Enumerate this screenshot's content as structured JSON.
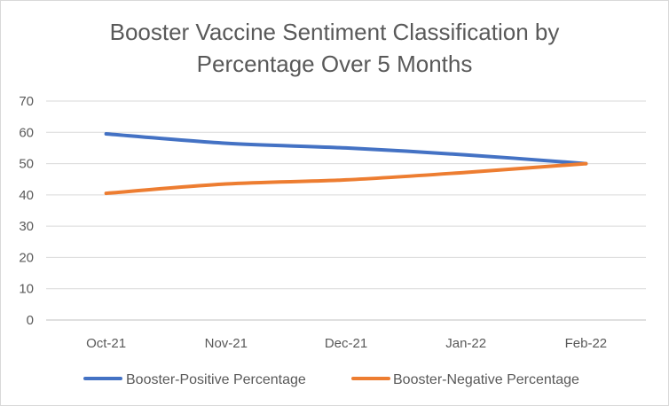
{
  "chart_data": {
    "type": "line",
    "title_line1": "Booster Vaccine Sentiment Classification by",
    "title_line2": "Percentage Over 5 Months",
    "categories": [
      "Oct-21",
      "Nov-21",
      "Dec-21",
      "Jan-22",
      "Feb-22"
    ],
    "series": [
      {
        "name": "Booster-Positive Percentage",
        "color": "#4472c4",
        "values": [
          59.5,
          56.5,
          55.0,
          52.8,
          50.0
        ]
      },
      {
        "name": "Booster-Negative Percentage",
        "color": "#ed7d31",
        "values": [
          40.5,
          43.5,
          44.8,
          47.2,
          50.0
        ]
      }
    ],
    "yticks": [
      0,
      10,
      20,
      30,
      40,
      50,
      60,
      70
    ],
    "ylim": [
      0,
      70
    ],
    "grid": true,
    "legend_position": "bottom"
  }
}
